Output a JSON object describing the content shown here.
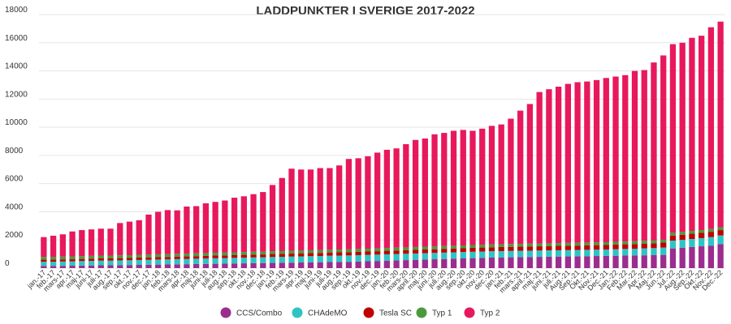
{
  "chart_data": {
    "type": "bar",
    "stacked": true,
    "title": "LADDPUNKTER I SVERIGE 2017-2022",
    "xlabel": "",
    "ylabel": "",
    "ylim": [
      0,
      18000
    ],
    "yticks": [
      0,
      2000,
      4000,
      6000,
      8000,
      10000,
      12000,
      14000,
      16000,
      18000
    ],
    "grid": true,
    "legend_position": "bottom",
    "categories": [
      "jan.-17",
      "feb.-17",
      "mars-17",
      "apr.-17",
      "maj-17",
      "juni-17",
      "juli-17",
      "aug.-17",
      "sep.-17",
      "okt.-17",
      "nov.-17",
      "dec.-17",
      "jan.-18",
      "feb.-18",
      "mars-18",
      "apr.-18",
      "maj-18",
      "juni-18",
      "juli-18",
      "aug.-18",
      "sep.-18",
      "okt.-18",
      "nov.-18",
      "dec.-18",
      "jan.-19",
      "feb.-19",
      "mars-19",
      "apr.-19",
      "maj-19",
      "juni-19",
      "juli-19",
      "aug.-19",
      "sep.-19",
      "okt.-19",
      "nov.-19",
      "dec.-19",
      "jan.-20",
      "feb.-20",
      "mars-20",
      "april.-20",
      "maj.-20",
      "juni.-20",
      "juli.-20",
      "aug.-20",
      "sep.-20",
      "okt.-20",
      "nov.-20",
      "dec.-20",
      "jan.-21",
      "feb.-21",
      "mars.-21",
      "april.-21",
      "maj.-21",
      "juni.-21",
      "juli.-21",
      "Aug.-21",
      "Sep.-21",
      "Okt.-21",
      "Nov.-21",
      "Dec.-21",
      "Jan.-22",
      "Feb.-22",
      "Mar.-22",
      "Apr.-22",
      "Maj.-22",
      "Jun.-22",
      "Jul.-22",
      "Aug.-22",
      "Sep.-22",
      "Okt.-22",
      "Nov.-22",
      "Dec.-22"
    ],
    "series": [
      {
        "name": "CCS/Combo",
        "color": "#9b2d8e",
        "values": [
          150,
          150,
          160,
          170,
          180,
          190,
          200,
          200,
          210,
          220,
          230,
          240,
          250,
          260,
          270,
          280,
          290,
          300,
          310,
          320,
          330,
          340,
          350,
          360,
          370,
          380,
          390,
          400,
          410,
          420,
          430,
          440,
          450,
          470,
          490,
          510,
          530,
          550,
          570,
          590,
          610,
          630,
          650,
          670,
          690,
          710,
          730,
          750,
          760,
          770,
          780,
          790,
          800,
          810,
          820,
          830,
          840,
          850,
          860,
          870,
          880,
          890,
          900,
          910,
          920,
          940,
          1400,
          1450,
          1500,
          1550,
          1600,
          1700
        ]
      },
      {
        "name": "CHAdeMO",
        "color": "#2ec4c4",
        "values": [
          300,
          300,
          310,
          310,
          320,
          320,
          330,
          330,
          340,
          340,
          350,
          350,
          360,
          360,
          370,
          370,
          380,
          380,
          390,
          390,
          400,
          400,
          410,
          410,
          420,
          420,
          430,
          430,
          440,
          440,
          450,
          450,
          450,
          450,
          450,
          450,
          450,
          450,
          450,
          450,
          450,
          450,
          450,
          450,
          450,
          450,
          450,
          450,
          450,
          450,
          450,
          450,
          450,
          450,
          450,
          450,
          450,
          450,
          450,
          450,
          460,
          470,
          480,
          490,
          500,
          520,
          550,
          560,
          570,
          580,
          600,
          620
        ]
      },
      {
        "name": "Tesla SC",
        "color": "#c00000",
        "values": [
          150,
          150,
          150,
          150,
          150,
          160,
          160,
          160,
          160,
          160,
          170,
          170,
          170,
          170,
          180,
          180,
          180,
          190,
          190,
          190,
          190,
          200,
          200,
          200,
          210,
          210,
          210,
          220,
          220,
          220,
          230,
          230,
          230,
          240,
          240,
          240,
          250,
          250,
          250,
          260,
          260,
          260,
          270,
          270,
          270,
          280,
          280,
          280,
          290,
          290,
          290,
          300,
          300,
          300,
          310,
          310,
          310,
          320,
          320,
          320,
          330,
          330,
          330,
          340,
          340,
          350,
          360,
          360,
          370,
          370,
          380,
          380
        ]
      },
      {
        "name": "Typ 1",
        "color": "#4a9a3c",
        "values": [
          200,
          200,
          200,
          200,
          200,
          200,
          200,
          200,
          200,
          200,
          200,
          200,
          200,
          200,
          200,
          200,
          200,
          200,
          200,
          200,
          200,
          200,
          200,
          200,
          200,
          200,
          200,
          200,
          200,
          200,
          200,
          200,
          200,
          200,
          200,
          200,
          200,
          200,
          200,
          200,
          200,
          200,
          200,
          200,
          200,
          200,
          200,
          200,
          200,
          200,
          200,
          200,
          200,
          200,
          200,
          200,
          200,
          200,
          200,
          200,
          200,
          200,
          200,
          200,
          200,
          200,
          200,
          200,
          200,
          200,
          200,
          200
        ]
      },
      {
        "name": "Typ 2",
        "color": "#e8185d",
        "values": [
          1400,
          1500,
          1580,
          1770,
          1850,
          1880,
          1910,
          1910,
          2290,
          2380,
          2450,
          2840,
          3020,
          3130,
          3080,
          3340,
          3350,
          3530,
          3610,
          3700,
          3880,
          3960,
          4090,
          4230,
          4700,
          5190,
          5830,
          5750,
          5730,
          5820,
          5790,
          5970,
          6420,
          6440,
          6560,
          6800,
          6970,
          7050,
          7330,
          7600,
          7680,
          7960,
          8030,
          8160,
          8200,
          8110,
          8240,
          8420,
          8500,
          8900,
          9460,
          9910,
          10750,
          10940,
          11100,
          11290,
          11400,
          11430,
          11520,
          11660,
          11730,
          11810,
          12090,
          12120,
          12640,
          13090,
          13390,
          13430,
          13710,
          13800,
          14320,
          14600
        ]
      }
    ]
  }
}
